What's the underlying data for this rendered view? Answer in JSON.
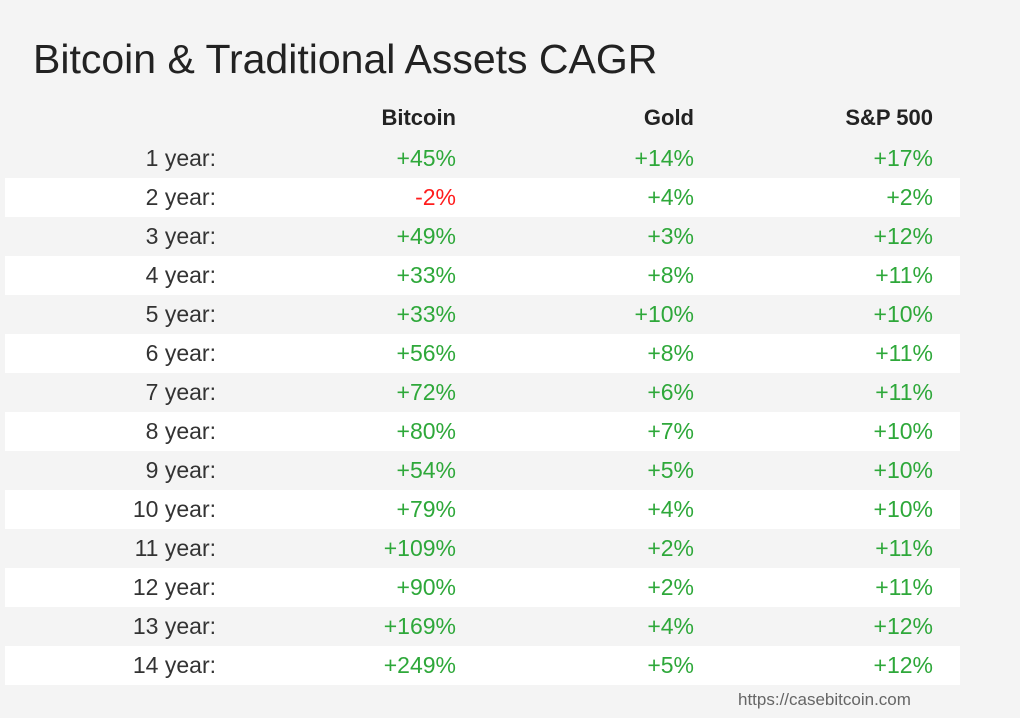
{
  "title": "Bitcoin & Traditional Assets CAGR",
  "source": "https://casebitcoin.com",
  "colors": {
    "positive": "#2ea83a",
    "negative": "#ff1c1c",
    "text": "#222222",
    "background": "#f4f4f4",
    "stripe": "#ffffff"
  },
  "chart_data": {
    "type": "table",
    "title": "Bitcoin & Traditional Assets CAGR",
    "columns": [
      "",
      "Bitcoin",
      "Gold",
      "S&P 500"
    ],
    "rows": [
      {
        "label": "1 year:",
        "values": [
          "+45%",
          "+14%",
          "+17%"
        ]
      },
      {
        "label": "2 year:",
        "values": [
          "-2%",
          "+4%",
          "+2%"
        ]
      },
      {
        "label": "3 year:",
        "values": [
          "+49%",
          "+3%",
          "+12%"
        ]
      },
      {
        "label": "4 year:",
        "values": [
          "+33%",
          "+8%",
          "+11%"
        ]
      },
      {
        "label": "5 year:",
        "values": [
          "+33%",
          "+10%",
          "+10%"
        ]
      },
      {
        "label": "6 year:",
        "values": [
          "+56%",
          "+8%",
          "+11%"
        ]
      },
      {
        "label": "7 year:",
        "values": [
          "+72%",
          "+6%",
          "+11%"
        ]
      },
      {
        "label": "8 year:",
        "values": [
          "+80%",
          "+7%",
          "+10%"
        ]
      },
      {
        "label": "9 year:",
        "values": [
          "+54%",
          "+5%",
          "+10%"
        ]
      },
      {
        "label": "10 year:",
        "values": [
          "+79%",
          "+4%",
          "+10%"
        ]
      },
      {
        "label": "11 year:",
        "values": [
          "+109%",
          "+2%",
          "+11%"
        ]
      },
      {
        "label": "12 year:",
        "values": [
          "+90%",
          "+2%",
          "+11%"
        ]
      },
      {
        "label": "13 year:",
        "values": [
          "+169%",
          "+4%",
          "+12%"
        ]
      },
      {
        "label": "14 year:",
        "values": [
          "+249%",
          "+5%",
          "+12%"
        ]
      }
    ]
  }
}
